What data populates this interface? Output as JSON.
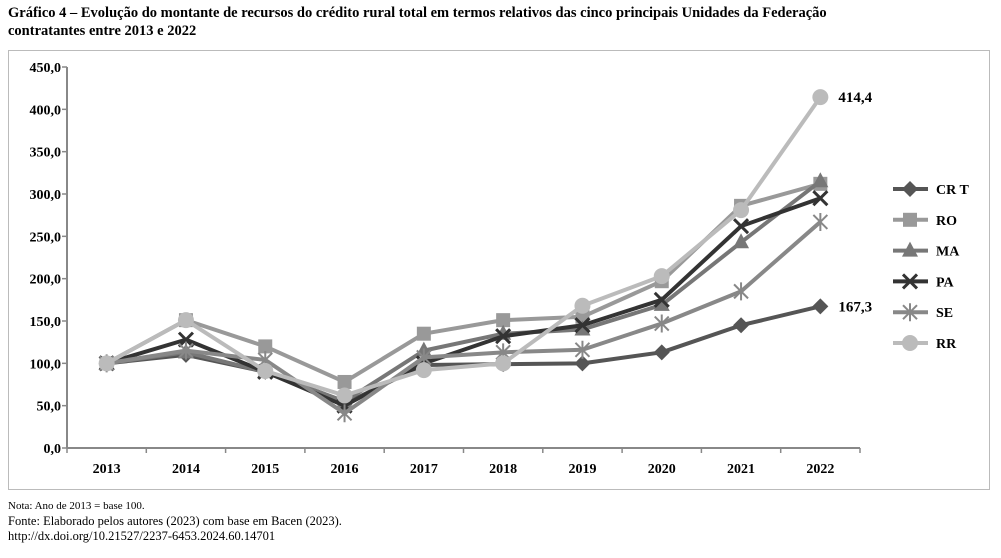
{
  "title": "Gráfico 4 – Evolução do montante de recursos do crédito rural total em termos relativos das cinco principais Unidades da Federação contratantes entre 2013 e 2022",
  "notes": {
    "nota": "Nota: Ano de 2013 = base 100.",
    "fonte": "Fonte: Elaborado pelos autores (2023) com base em Bacen (2023).",
    "doi": "http://dx.doi.org/10.21527/2237-6453.2024.60.14701"
  },
  "chart_data": {
    "type": "line",
    "title": "",
    "xlabel": "",
    "ylabel": "",
    "ylim": [
      0,
      450
    ],
    "yticks": [
      "0,0",
      "50,0",
      "100,0",
      "150,0",
      "200,0",
      "250,0",
      "300,0",
      "350,0",
      "400,0",
      "450,0"
    ],
    "categories": [
      "2013",
      "2014",
      "2015",
      "2016",
      "2017",
      "2018",
      "2019",
      "2020",
      "2021",
      "2022"
    ],
    "grid": false,
    "legend": "right",
    "series": [
      {
        "name": "CR T",
        "marker": "diamond",
        "color": "#555555",
        "values": [
          100,
          110,
          90,
          52,
          98,
          99,
          100,
          113,
          145,
          167.3
        ]
      },
      {
        "name": "RO",
        "marker": "square",
        "color": "#999999",
        "values": [
          100,
          151,
          120,
          78,
          135,
          151,
          155,
          197,
          286,
          312
        ]
      },
      {
        "name": "MA",
        "marker": "triangle",
        "color": "#777777",
        "values": [
          100,
          113,
          90,
          55,
          115,
          135,
          140,
          169,
          243,
          315
        ]
      },
      {
        "name": "PA",
        "marker": "x",
        "color": "#333333",
        "values": [
          100,
          128,
          90,
          50,
          100,
          132,
          145,
          175,
          262,
          295
        ]
      },
      {
        "name": "SE",
        "marker": "star",
        "color": "#888888",
        "values": [
          100,
          115,
          104,
          41,
          107,
          113,
          116,
          147,
          185,
          267
        ]
      },
      {
        "name": "RR",
        "marker": "circle",
        "color": "#bbbbbb",
        "values": [
          100,
          151,
          91,
          62,
          92,
          100,
          168,
          203,
          281,
          414.4
        ]
      }
    ],
    "annotations": [
      {
        "series": "RR",
        "category": "2022",
        "text": "414,4"
      },
      {
        "series": "CR T",
        "category": "2022",
        "text": "167,3"
      }
    ]
  }
}
